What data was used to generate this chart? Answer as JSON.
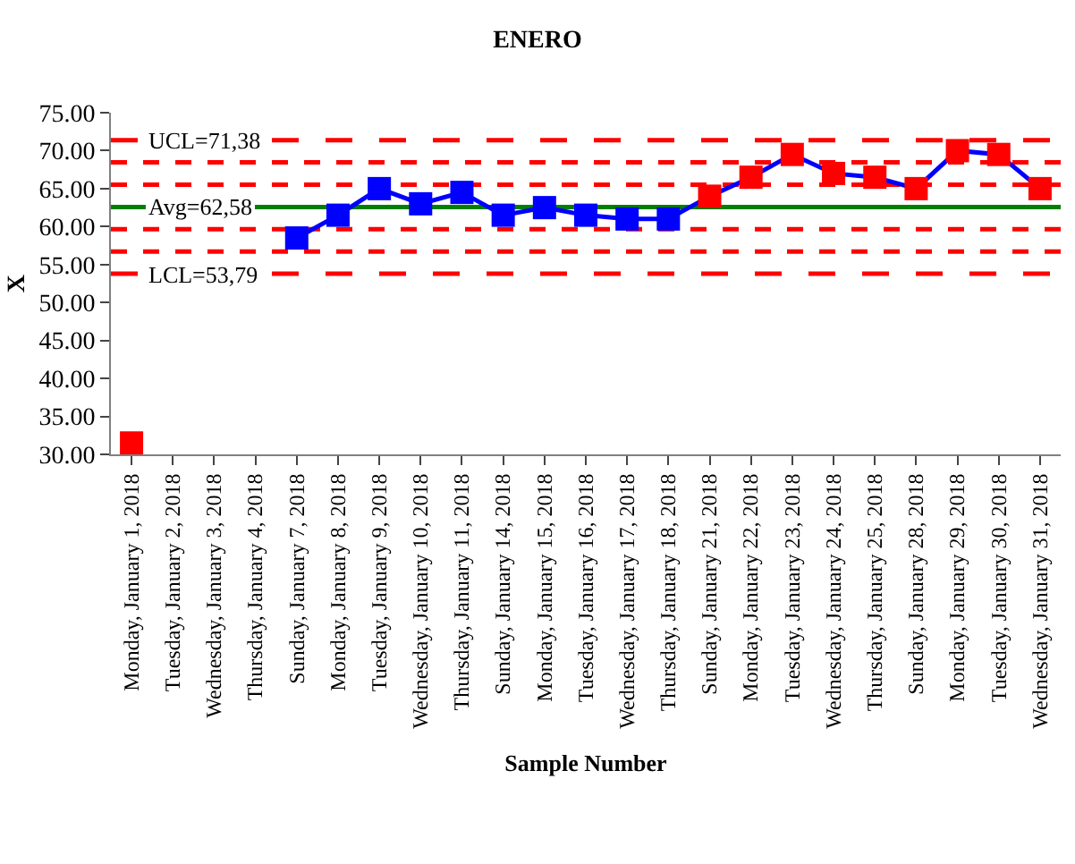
{
  "chart_data": {
    "type": "line",
    "title": "ENERO",
    "xlabel": "Sample Number",
    "ylabel": "X",
    "categories": [
      "Monday, January 1, 2018",
      "Tuesday, January 2, 2018",
      "Wednesday, January 3, 2018",
      "Thursday, January 4, 2018",
      "Sunday, January 7, 2018",
      "Monday, January 8, 2018",
      "Tuesday, January 9, 2018",
      "Wednesday, January 10, 2018",
      "Thursday, January 11, 2018",
      "Sunday, January 14, 2018",
      "Monday, January 15, 2018",
      "Tuesday, January 16, 2018",
      "Wednesday, January 17, 2018",
      "Thursday, January 18, 2018",
      "Sunday, January 21, 2018",
      "Monday, January 22, 2018",
      "Tuesday, January 23, 2018",
      "Wednesday, January 24, 2018",
      "Thursday, January 25, 2018",
      "Sunday, January 28, 2018",
      "Monday, January 29, 2018",
      "Tuesday, January 30, 2018",
      "Wednesday, January 31, 2018"
    ],
    "series": [
      {
        "color": "#0000ff",
        "values": [
          31.5,
          null,
          null,
          null,
          58.5,
          61.5,
          65,
          63,
          64.5,
          61.5,
          62.5,
          61.5,
          61,
          61,
          64,
          66.5,
          69.5,
          67,
          66.5,
          65,
          70,
          69.5,
          65
        ],
        "colors": [
          "#ff0000",
          null,
          null,
          null,
          "#0000ff",
          "#0000ff",
          "#0000ff",
          "#0000ff",
          "#0000ff",
          "#0000ff",
          "#0000ff",
          "#0000ff",
          "#0000ff",
          "#0000ff",
          "#ff0000",
          "#ff0000",
          "#ff0000",
          "#ff0000",
          "#ff0000",
          "#ff0000",
          "#ff0000",
          "#ff0000",
          "#ff0000"
        ]
      }
    ],
    "ylim": [
      30,
      75
    ],
    "yticks": [
      {
        "value": 30,
        "label": "30.00"
      },
      {
        "value": 35,
        "label": "35.00"
      },
      {
        "value": 40,
        "label": "40.00"
      },
      {
        "value": 45,
        "label": "45.00"
      },
      {
        "value": 50,
        "label": "50.00"
      },
      {
        "value": 55,
        "label": "55.00"
      },
      {
        "value": 60,
        "label": "60.00"
      },
      {
        "value": 65,
        "label": "65.00"
      },
      {
        "value": 70,
        "label": "70.00"
      },
      {
        "value": 75,
        "label": "75.00"
      }
    ],
    "ref_lines": [
      {
        "axis": "y",
        "value": 71.38,
        "label": "UCL=71,38",
        "color": "#ff0000",
        "line_style": "dashed"
      },
      {
        "axis": "y",
        "value": 68.45,
        "color": "#ff0000",
        "line_style": "dotted"
      },
      {
        "axis": "y",
        "value": 65.51,
        "color": "#ff0000",
        "line_style": "dotted"
      },
      {
        "axis": "y",
        "value": 62.58,
        "label": "Avg=62,58",
        "color": "#008000",
        "line_style": "solid"
      },
      {
        "axis": "y",
        "value": 59.65,
        "color": "#ff0000",
        "line_style": "dotted"
      },
      {
        "axis": "y",
        "value": 56.72,
        "color": "#ff0000",
        "line_style": "dotted"
      },
      {
        "axis": "y",
        "value": 53.79,
        "label": "LCL=53,79",
        "color": "#ff0000",
        "line_style": "dashed"
      }
    ],
    "marker": "square",
    "grid": false,
    "legend": false
  }
}
